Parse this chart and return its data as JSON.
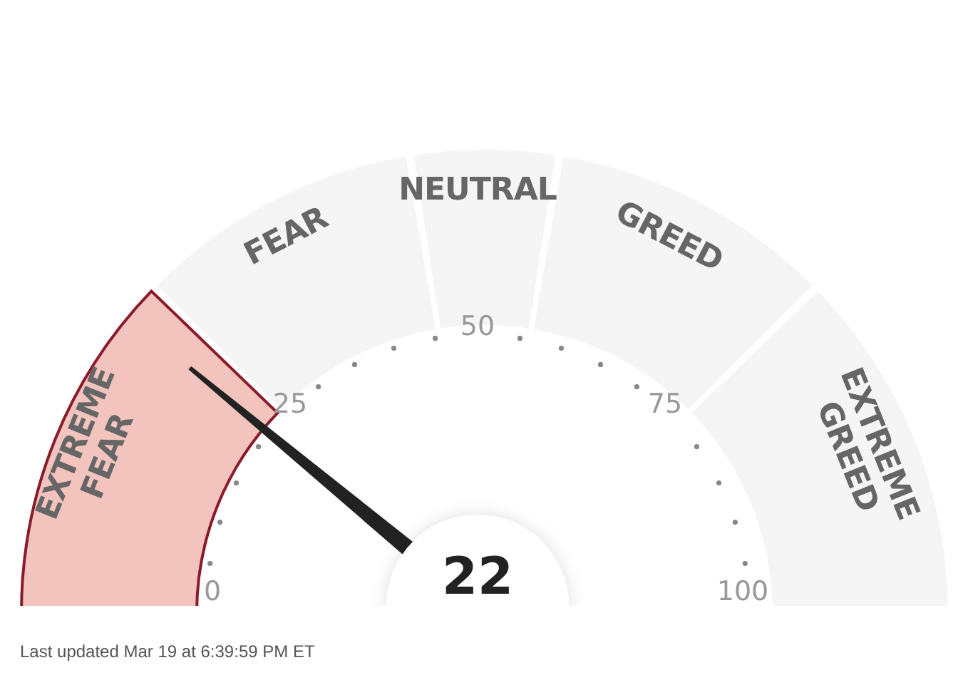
{
  "chart_data": {
    "type": "donut",
    "categories": [
      "EXTREME FEAR",
      "FEAR",
      "NEUTRAL",
      "GREED",
      "EXTREME GREED"
    ],
    "values": [
      25,
      20,
      10,
      20,
      25
    ],
    "colors": [
      "#f2c4bd",
      "#f5f5f5",
      "#f5f5f5",
      "#f5f5f5",
      "#f5f5f5"
    ],
    "needle": "EXTREME FEAR",
    "annotations": [
      "22",
      "0",
      "25",
      "50",
      "75",
      "100",
      "Last updated Mar 19 at 6:39:59 PM ET"
    ]
  }
}
